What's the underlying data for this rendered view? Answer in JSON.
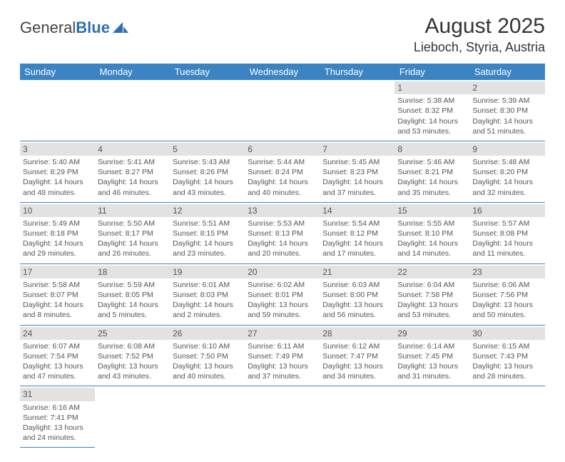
{
  "logo": {
    "general": "General",
    "blue": "Blue"
  },
  "title": "August 2025",
  "location": "Lieboch, Styria, Austria",
  "colors": {
    "header_bg": "#3b84c4",
    "header_text": "#ffffff",
    "daynum_bg": "#e2e2e2",
    "border": "#3b84c4",
    "body_text": "#555555"
  },
  "day_headers": [
    "Sunday",
    "Monday",
    "Tuesday",
    "Wednesday",
    "Thursday",
    "Friday",
    "Saturday"
  ],
  "weeks": [
    [
      null,
      null,
      null,
      null,
      null,
      {
        "n": "1",
        "sunrise": "Sunrise: 5:38 AM",
        "sunset": "Sunset: 8:32 PM",
        "daylight": "Daylight: 14 hours and 53 minutes."
      },
      {
        "n": "2",
        "sunrise": "Sunrise: 5:39 AM",
        "sunset": "Sunset: 8:30 PM",
        "daylight": "Daylight: 14 hours and 51 minutes."
      }
    ],
    [
      {
        "n": "3",
        "sunrise": "Sunrise: 5:40 AM",
        "sunset": "Sunset: 8:29 PM",
        "daylight": "Daylight: 14 hours and 48 minutes."
      },
      {
        "n": "4",
        "sunrise": "Sunrise: 5:41 AM",
        "sunset": "Sunset: 8:27 PM",
        "daylight": "Daylight: 14 hours and 46 minutes."
      },
      {
        "n": "5",
        "sunrise": "Sunrise: 5:43 AM",
        "sunset": "Sunset: 8:26 PM",
        "daylight": "Daylight: 14 hours and 43 minutes."
      },
      {
        "n": "6",
        "sunrise": "Sunrise: 5:44 AM",
        "sunset": "Sunset: 8:24 PM",
        "daylight": "Daylight: 14 hours and 40 minutes."
      },
      {
        "n": "7",
        "sunrise": "Sunrise: 5:45 AM",
        "sunset": "Sunset: 8:23 PM",
        "daylight": "Daylight: 14 hours and 37 minutes."
      },
      {
        "n": "8",
        "sunrise": "Sunrise: 5:46 AM",
        "sunset": "Sunset: 8:21 PM",
        "daylight": "Daylight: 14 hours and 35 minutes."
      },
      {
        "n": "9",
        "sunrise": "Sunrise: 5:48 AM",
        "sunset": "Sunset: 8:20 PM",
        "daylight": "Daylight: 14 hours and 32 minutes."
      }
    ],
    [
      {
        "n": "10",
        "sunrise": "Sunrise: 5:49 AM",
        "sunset": "Sunset: 8:18 PM",
        "daylight": "Daylight: 14 hours and 29 minutes."
      },
      {
        "n": "11",
        "sunrise": "Sunrise: 5:50 AM",
        "sunset": "Sunset: 8:17 PM",
        "daylight": "Daylight: 14 hours and 26 minutes."
      },
      {
        "n": "12",
        "sunrise": "Sunrise: 5:51 AM",
        "sunset": "Sunset: 8:15 PM",
        "daylight": "Daylight: 14 hours and 23 minutes."
      },
      {
        "n": "13",
        "sunrise": "Sunrise: 5:53 AM",
        "sunset": "Sunset: 8:13 PM",
        "daylight": "Daylight: 14 hours and 20 minutes."
      },
      {
        "n": "14",
        "sunrise": "Sunrise: 5:54 AM",
        "sunset": "Sunset: 8:12 PM",
        "daylight": "Daylight: 14 hours and 17 minutes."
      },
      {
        "n": "15",
        "sunrise": "Sunrise: 5:55 AM",
        "sunset": "Sunset: 8:10 PM",
        "daylight": "Daylight: 14 hours and 14 minutes."
      },
      {
        "n": "16",
        "sunrise": "Sunrise: 5:57 AM",
        "sunset": "Sunset: 8:08 PM",
        "daylight": "Daylight: 14 hours and 11 minutes."
      }
    ],
    [
      {
        "n": "17",
        "sunrise": "Sunrise: 5:58 AM",
        "sunset": "Sunset: 8:07 PM",
        "daylight": "Daylight: 14 hours and 8 minutes."
      },
      {
        "n": "18",
        "sunrise": "Sunrise: 5:59 AM",
        "sunset": "Sunset: 8:05 PM",
        "daylight": "Daylight: 14 hours and 5 minutes."
      },
      {
        "n": "19",
        "sunrise": "Sunrise: 6:01 AM",
        "sunset": "Sunset: 8:03 PM",
        "daylight": "Daylight: 14 hours and 2 minutes."
      },
      {
        "n": "20",
        "sunrise": "Sunrise: 6:02 AM",
        "sunset": "Sunset: 8:01 PM",
        "daylight": "Daylight: 13 hours and 59 minutes."
      },
      {
        "n": "21",
        "sunrise": "Sunrise: 6:03 AM",
        "sunset": "Sunset: 8:00 PM",
        "daylight": "Daylight: 13 hours and 56 minutes."
      },
      {
        "n": "22",
        "sunrise": "Sunrise: 6:04 AM",
        "sunset": "Sunset: 7:58 PM",
        "daylight": "Daylight: 13 hours and 53 minutes."
      },
      {
        "n": "23",
        "sunrise": "Sunrise: 6:06 AM",
        "sunset": "Sunset: 7:56 PM",
        "daylight": "Daylight: 13 hours and 50 minutes."
      }
    ],
    [
      {
        "n": "24",
        "sunrise": "Sunrise: 6:07 AM",
        "sunset": "Sunset: 7:54 PM",
        "daylight": "Daylight: 13 hours and 47 minutes."
      },
      {
        "n": "25",
        "sunrise": "Sunrise: 6:08 AM",
        "sunset": "Sunset: 7:52 PM",
        "daylight": "Daylight: 13 hours and 43 minutes."
      },
      {
        "n": "26",
        "sunrise": "Sunrise: 6:10 AM",
        "sunset": "Sunset: 7:50 PM",
        "daylight": "Daylight: 13 hours and 40 minutes."
      },
      {
        "n": "27",
        "sunrise": "Sunrise: 6:11 AM",
        "sunset": "Sunset: 7:49 PM",
        "daylight": "Daylight: 13 hours and 37 minutes."
      },
      {
        "n": "28",
        "sunrise": "Sunrise: 6:12 AM",
        "sunset": "Sunset: 7:47 PM",
        "daylight": "Daylight: 13 hours and 34 minutes."
      },
      {
        "n": "29",
        "sunrise": "Sunrise: 6:14 AM",
        "sunset": "Sunset: 7:45 PM",
        "daylight": "Daylight: 13 hours and 31 minutes."
      },
      {
        "n": "30",
        "sunrise": "Sunrise: 6:15 AM",
        "sunset": "Sunset: 7:43 PM",
        "daylight": "Daylight: 13 hours and 28 minutes."
      }
    ],
    [
      {
        "n": "31",
        "sunrise": "Sunrise: 6:16 AM",
        "sunset": "Sunset: 7:41 PM",
        "daylight": "Daylight: 13 hours and 24 minutes."
      },
      null,
      null,
      null,
      null,
      null,
      null
    ]
  ]
}
